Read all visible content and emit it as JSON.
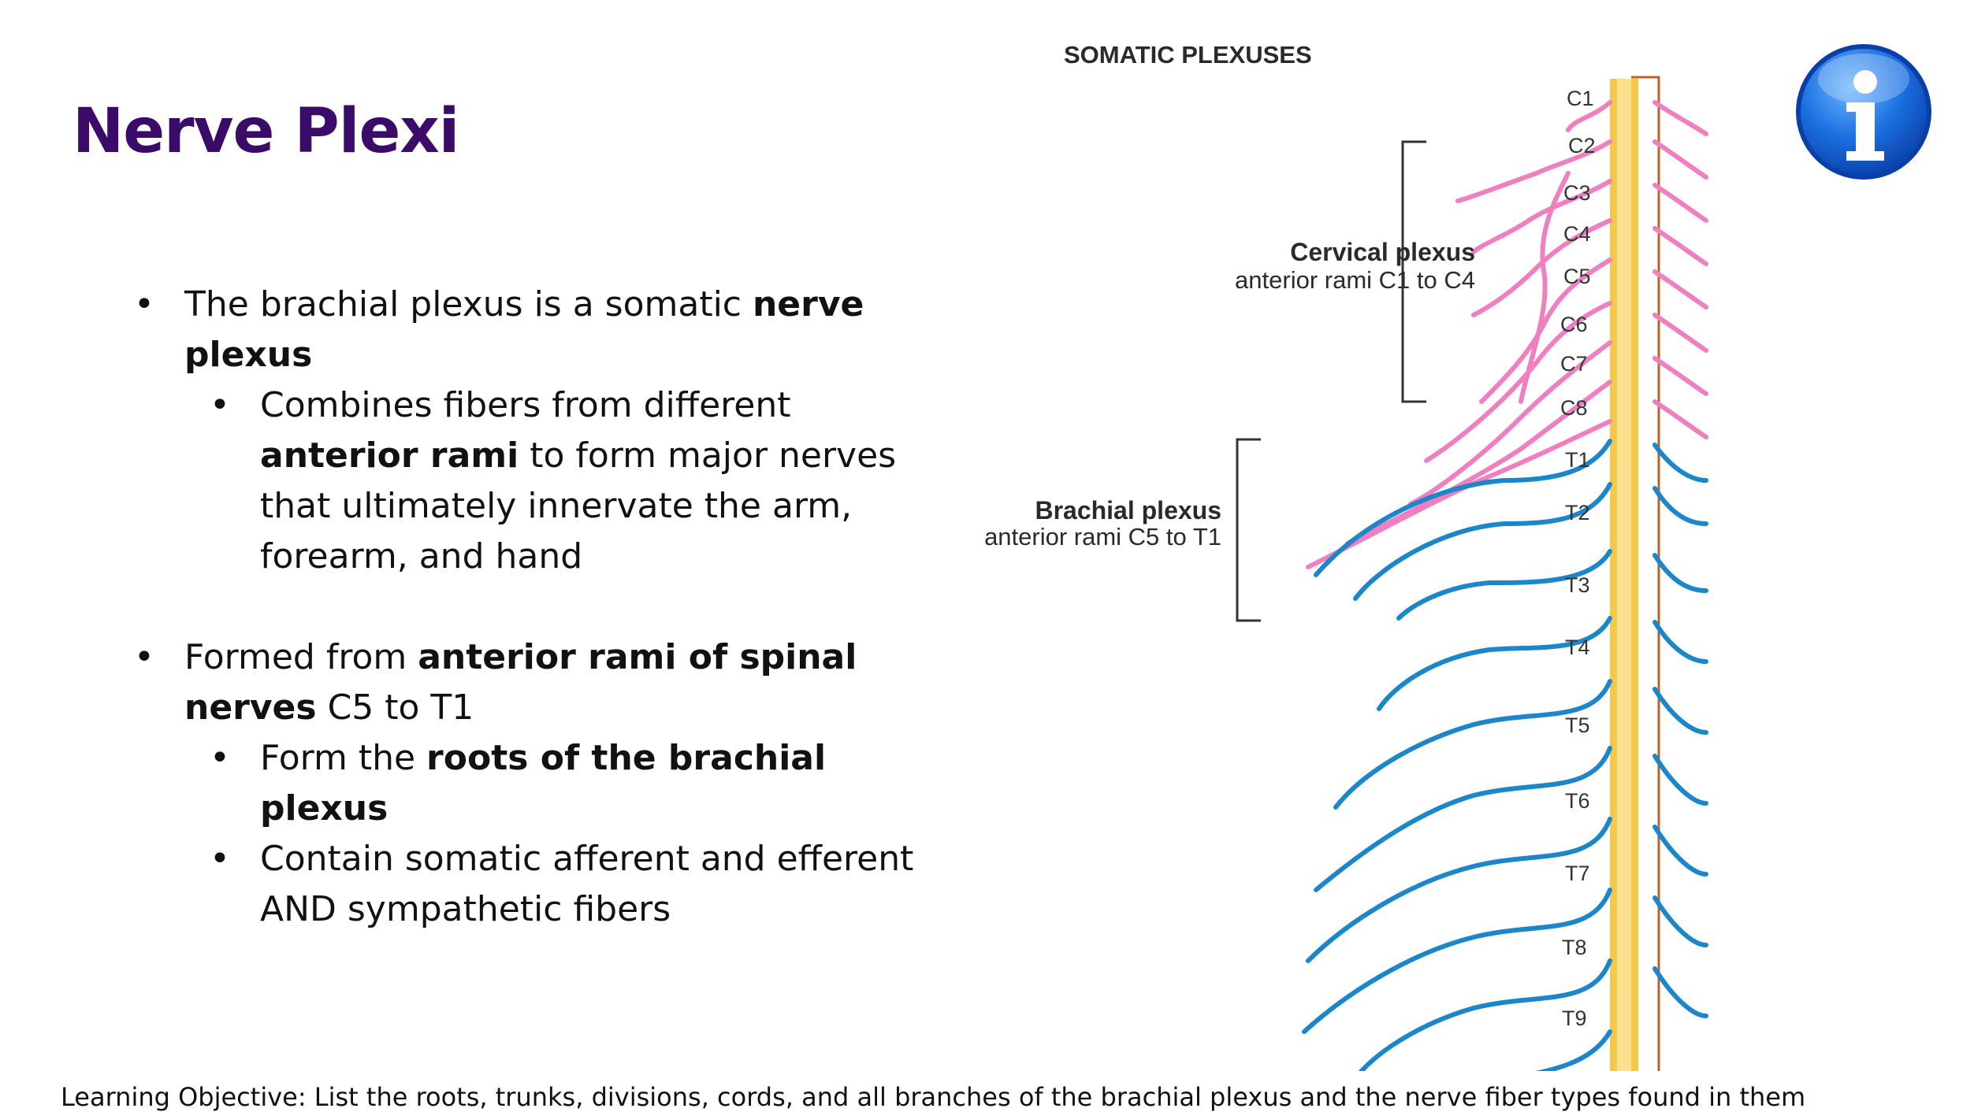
{
  "slide": {
    "title": "Nerve Plexi",
    "bullets": {
      "b1": {
        "text1": "The brachial plexus is a somatic ",
        "bold1": "nerve plexus"
      },
      "b1a": {
        "text1": "Combines fibers from different ",
        "bold1": "anterior rami",
        "text2": " to form major nerves that ultimately innervate the arm, forearm, and hand"
      },
      "b2": {
        "text1": "Formed from ",
        "bold1": "anterior rami of spinal nerves",
        "text2": " C5 to T1"
      },
      "b2a": {
        "text1": "Form the ",
        "bold1": "roots of the brachial plexus"
      },
      "b2b": {
        "text1": "Contain somatic afferent and efferent AND sympathetic fibers"
      }
    },
    "objective": "Learning Objective: List the roots, trunks, divisions, cords, and all branches of the brachial plexus  and the nerve fiber types found in them"
  },
  "figure": {
    "title": "SOMATIC PLEXUSES",
    "cervical": {
      "name": "Cervical plexus",
      "sub": "anterior rami C1 to C4"
    },
    "brachial": {
      "name": "Brachial plexus",
      "sub": "anterior rami C5 to T1"
    },
    "levels": [
      "C1",
      "C2",
      "C3",
      "C4",
      "C5",
      "C6",
      "C7",
      "C8",
      "T1",
      "T2",
      "T3",
      "T4",
      "T5",
      "T6",
      "T7",
      "T8",
      "T9"
    ],
    "colors": {
      "cervical": "#ef7fbf",
      "thoracic": "#1b86c9",
      "cord": "#f5c84a",
      "title": "#3b0b6a"
    }
  },
  "icons": {
    "info": "info-icon"
  }
}
